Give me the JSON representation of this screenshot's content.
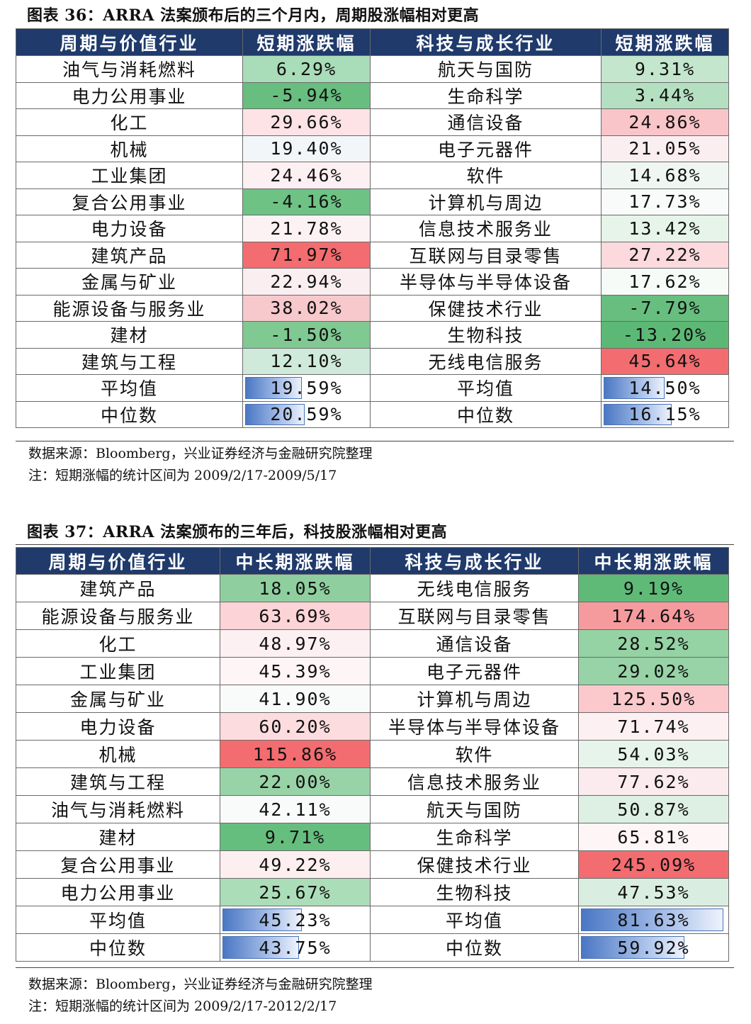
{
  "t1": {
    "title": "图表 36：ARRA 法案颁布后的三个月内，周期股涨幅相对更高",
    "headers": [
      "周期与价值行业",
      "短期涨跌幅",
      "科技与成长行业",
      "短期涨跌幅"
    ],
    "rows": [
      {
        "l": "油气与消耗燃料",
        "lv": "6.29%",
        "lbg": "#a9dcb8",
        "r": "航天与国防",
        "rv": "9.31%",
        "rbg": "#c3e6cd"
      },
      {
        "l": "电力公用事业",
        "lv": "-5.94%",
        "lbg": "#67be7f",
        "r": "生命科学",
        "rv": "3.44%",
        "rbg": "#b4e0c1"
      },
      {
        "l": "化工",
        "lv": "29.66%",
        "lbg": "#fde3e6",
        "r": "通信设备",
        "rv": "24.86%",
        "rbg": "#f9c5c9"
      },
      {
        "l": "机械",
        "lv": "19.40%",
        "lbg": "#f3f6f8",
        "r": "电子元器件",
        "rv": "21.05%",
        "rbg": "#fbeef1"
      },
      {
        "l": "工业集团",
        "lv": "24.46%",
        "lbg": "#fdf0f2",
        "r": "软件",
        "rv": "14.68%",
        "rbg": "#f0f7f3"
      },
      {
        "l": "复合公用事业",
        "lv": "-4.16%",
        "lbg": "#6ec284",
        "r": "计算机与周边",
        "rv": "17.73%",
        "rbg": "#f8fbf9"
      },
      {
        "l": "电力设备",
        "lv": "21.78%",
        "lbg": "#fcf2f4",
        "r": "信息技术服务业",
        "rv": "13.42%",
        "rbg": "#e6f4ea"
      },
      {
        "l": "建筑产品",
        "lv": "71.97%",
        "lbg": "#f36c6f",
        "r": "互联网与目录零售",
        "rv": "27.22%",
        "rbg": "#fbd9dc"
      },
      {
        "l": "金属与矿业",
        "lv": "22.94%",
        "lbg": "#fbeef1",
        "r": "半导体与半导体设备",
        "rv": "17.62%",
        "rbg": "#f7fbf8"
      },
      {
        "l": "能源设备与服务业",
        "lv": "38.02%",
        "lbg": "#f7c9cc",
        "r": "保健技术行业",
        "rv": "-7.79%",
        "rbg": "#67be7f"
      },
      {
        "l": "建材",
        "lv": "-1.50%",
        "lbg": "#80c992",
        "r": "生物科技",
        "rv": "-13.20%",
        "rbg": "#5cb975"
      },
      {
        "l": "建筑与工程",
        "lv": "12.10%",
        "lbg": "#cfeada",
        "r": "无线电信服务",
        "rv": "45.64%",
        "rbg": "#f36c6f"
      }
    ],
    "summary": [
      {
        "l": "平均值",
        "lv": "19.59%",
        "lfill": 0.47,
        "r": "平均值",
        "rv": "14.50%",
        "rfill": 0.5
      },
      {
        "l": "中位数",
        "lv": "20.59%",
        "lfill": 0.49,
        "r": "中位数",
        "rv": "16.15%",
        "rfill": 0.56
      }
    ],
    "source": "数据来源：Bloomberg，兴业证券经济与金融研究院整理",
    "note": "注：短期涨幅的统计区间为 2009/2/17-2009/5/17"
  },
  "t2": {
    "title": "图表 37：ARRA 法案颁布的三年后，科技股涨幅相对更高",
    "headers": [
      "周期与价值行业",
      "中长期涨跌幅",
      "科技与成长行业",
      "中长期涨跌幅"
    ],
    "rows": [
      {
        "l": "建筑产品",
        "lv": "18.05%",
        "lbg": "#8fcf9f",
        "r": "无线电信服务",
        "rv": "9.19%",
        "rbg": "#5fba78"
      },
      {
        "l": "能源设备与服务业",
        "lv": "63.69%",
        "lbg": "#fcd4d7",
        "r": "互联网与目录零售",
        "rv": "174.64%",
        "rbg": "#f59b9e"
      },
      {
        "l": "化工",
        "lv": "48.97%",
        "lbg": "#fdf0f2",
        "r": "通信设备",
        "rv": "28.52%",
        "rbg": "#95d2a4"
      },
      {
        "l": "工业集团",
        "lv": "45.39%",
        "lbg": "#fdf5f6",
        "r": "电子元器件",
        "rv": "29.02%",
        "rbg": "#97d3a6"
      },
      {
        "l": "金属与矿业",
        "lv": "41.90%",
        "lbg": "#f9fbfa",
        "r": "计算机与周边",
        "rv": "125.50%",
        "rbg": "#fbc8cc"
      },
      {
        "l": "电力设备",
        "lv": "60.20%",
        "lbg": "#fcdcdf",
        "r": "半导体与半导体设备",
        "rv": "71.74%",
        "rbg": "#fdf0f2"
      },
      {
        "l": "机械",
        "lv": "115.86%",
        "lbg": "#f36c6f",
        "r": "软件",
        "rv": "54.03%",
        "rbg": "#e7f4eb"
      },
      {
        "l": "建筑与工程",
        "lv": "22.00%",
        "lbg": "#98d3a7",
        "r": "信息技术服务业",
        "rv": "77.62%",
        "rbg": "#fcebee"
      },
      {
        "l": "油气与消耗燃料",
        "lv": "42.11%",
        "lbg": "#f9fbfa",
        "r": "航天与国防",
        "rv": "50.87%",
        "rbg": "#ddf0e3"
      },
      {
        "l": "建材",
        "lv": "9.71%",
        "lbg": "#66be7e",
        "r": "生命科学",
        "rv": "65.81%",
        "rbg": "#fdf5f6"
      },
      {
        "l": "复合公用事业",
        "lv": "49.22%",
        "lbg": "#fdeef0",
        "r": "保健技术行业",
        "rv": "245.09%",
        "rbg": "#f36c6f"
      },
      {
        "l": "电力公用事业",
        "lv": "25.67%",
        "lbg": "#acddb9",
        "r": "生物科技",
        "rv": "47.53%",
        "rbg": "#d9eee0"
      }
    ],
    "summary": [
      {
        "l": "平均值",
        "lv": "45.23%",
        "lfill": 0.55,
        "r": "平均值",
        "rv": "81.63%",
        "rfill": 0.97
      },
      {
        "l": "中位数",
        "lv": "43.75%",
        "lfill": 0.53,
        "r": "中位数",
        "rv": "59.92%",
        "rfill": 0.71
      }
    ],
    "source": "数据来源：Bloomberg，兴业证券经济与金融研究院整理",
    "note": "注：短期涨幅的统计区间为 2009/2/17-2012/2/17"
  }
}
